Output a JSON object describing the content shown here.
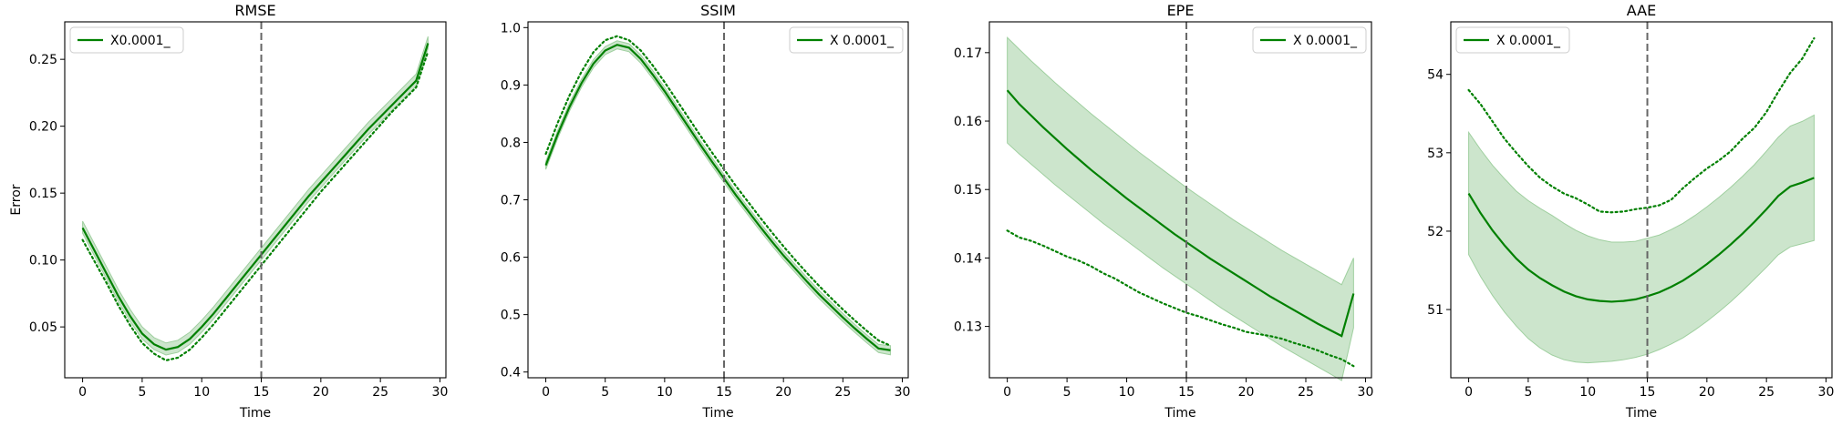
{
  "chart_data": [
    {
      "type": "line",
      "title": "RMSE",
      "xlabel": "Time",
      "ylabel": "Error",
      "xlim": [
        -1.5,
        30.5
      ],
      "ylim": [
        0.012,
        0.278
      ],
      "xticks": [
        0,
        5,
        10,
        15,
        20,
        25,
        30
      ],
      "yticks": [
        0.05,
        0.1,
        0.15,
        0.2,
        0.25
      ],
      "ytick_labels": [
        "0.05",
        "0.10",
        "0.15",
        "0.20",
        "0.25"
      ],
      "vline": 15,
      "legend": {
        "label": "X0.0001_",
        "position": "top-left"
      },
      "color": "#008000",
      "band_color": "#CCE5CC",
      "x": [
        0,
        1,
        2,
        3,
        4,
        5,
        6,
        7,
        8,
        9,
        10,
        11,
        12,
        13,
        14,
        15,
        16,
        17,
        18,
        19,
        20,
        21,
        22,
        23,
        24,
        25,
        26,
        27,
        28,
        29
      ],
      "series": [
        {
          "style": "solid",
          "values": [
            0.124,
            0.107,
            0.09,
            0.073,
            0.058,
            0.045,
            0.037,
            0.033,
            0.035,
            0.041,
            0.05,
            0.06,
            0.071,
            0.082,
            0.093,
            0.104,
            0.115,
            0.126,
            0.137,
            0.148,
            0.158,
            0.168,
            0.178,
            0.188,
            0.198,
            0.207,
            0.216,
            0.225,
            0.234,
            0.262
          ]
        },
        {
          "style": "dotted",
          "values": [
            0.115,
            0.099,
            0.083,
            0.066,
            0.051,
            0.038,
            0.03,
            0.025,
            0.027,
            0.033,
            0.042,
            0.052,
            0.063,
            0.074,
            0.085,
            0.096,
            0.107,
            0.118,
            0.129,
            0.14,
            0.151,
            0.161,
            0.171,
            0.181,
            0.191,
            0.201,
            0.211,
            0.22,
            0.229,
            0.256
          ]
        }
      ],
      "band": {
        "lower": [
          0.12,
          0.103,
          0.086,
          0.069,
          0.054,
          0.041,
          0.033,
          0.029,
          0.031,
          0.037,
          0.046,
          0.056,
          0.067,
          0.078,
          0.089,
          0.1,
          0.111,
          0.122,
          0.133,
          0.144,
          0.154,
          0.164,
          0.174,
          0.184,
          0.194,
          0.203,
          0.212,
          0.221,
          0.23,
          0.258
        ],
        "upper": [
          0.129,
          0.112,
          0.095,
          0.078,
          0.063,
          0.05,
          0.042,
          0.038,
          0.04,
          0.046,
          0.055,
          0.065,
          0.076,
          0.087,
          0.098,
          0.109,
          0.12,
          0.131,
          0.142,
          0.153,
          0.163,
          0.173,
          0.183,
          0.193,
          0.203,
          0.212,
          0.221,
          0.23,
          0.239,
          0.267
        ]
      }
    },
    {
      "type": "line",
      "title": "SSIM",
      "xlabel": "Time",
      "ylabel": "",
      "xlim": [
        -1.5,
        30.5
      ],
      "ylim": [
        0.39,
        1.01
      ],
      "xticks": [
        0,
        5,
        10,
        15,
        20,
        25,
        30
      ],
      "yticks": [
        0.4,
        0.5,
        0.6,
        0.7,
        0.8,
        0.9,
        1.0
      ],
      "ytick_labels": [
        "0.4",
        "0.5",
        "0.6",
        "0.7",
        "0.8",
        "0.9",
        "1.0"
      ],
      "vline": 15,
      "legend": {
        "label": "X 0.0001_",
        "position": "top-right"
      },
      "color": "#008000",
      "band_color": "#CCE5CC",
      "x": [
        0,
        1,
        2,
        3,
        4,
        5,
        6,
        7,
        8,
        9,
        10,
        11,
        12,
        13,
        14,
        15,
        16,
        17,
        18,
        19,
        20,
        21,
        22,
        23,
        24,
        25,
        26,
        27,
        28,
        29
      ],
      "series": [
        {
          "style": "solid",
          "values": [
            0.76,
            0.814,
            0.862,
            0.903,
            0.937,
            0.96,
            0.97,
            0.965,
            0.945,
            0.918,
            0.889,
            0.858,
            0.827,
            0.796,
            0.766,
            0.737,
            0.708,
            0.681,
            0.654,
            0.628,
            0.603,
            0.58,
            0.557,
            0.535,
            0.515,
            0.495,
            0.476,
            0.458,
            0.441,
            0.438
          ]
        },
        {
          "style": "dotted",
          "values": [
            0.78,
            0.834,
            0.882,
            0.923,
            0.957,
            0.978,
            0.985,
            0.978,
            0.96,
            0.934,
            0.905,
            0.874,
            0.843,
            0.812,
            0.782,
            0.753,
            0.724,
            0.697,
            0.67,
            0.644,
            0.619,
            0.595,
            0.572,
            0.55,
            0.529,
            0.509,
            0.49,
            0.472,
            0.455,
            0.446
          ]
        }
      ],
      "band": {
        "lower": [
          0.753,
          0.807,
          0.855,
          0.896,
          0.93,
          0.953,
          0.963,
          0.958,
          0.938,
          0.911,
          0.882,
          0.851,
          0.82,
          0.789,
          0.759,
          0.73,
          0.701,
          0.674,
          0.647,
          0.621,
          0.596,
          0.573,
          0.55,
          0.528,
          0.508,
          0.488,
          0.469,
          0.451,
          0.434,
          0.43
        ],
        "upper": [
          0.767,
          0.821,
          0.869,
          0.91,
          0.944,
          0.967,
          0.977,
          0.972,
          0.952,
          0.925,
          0.896,
          0.865,
          0.834,
          0.803,
          0.773,
          0.744,
          0.715,
          0.688,
          0.661,
          0.635,
          0.61,
          0.587,
          0.564,
          0.542,
          0.522,
          0.502,
          0.483,
          0.465,
          0.448,
          0.446
        ]
      }
    },
    {
      "type": "line",
      "title": "EPE",
      "xlabel": "Time",
      "ylabel": "",
      "xlim": [
        -1.5,
        30.5
      ],
      "ylim": [
        0.1225,
        0.1745
      ],
      "xticks": [
        0,
        5,
        10,
        15,
        20,
        25,
        30
      ],
      "yticks": [
        0.13,
        0.14,
        0.15,
        0.16,
        0.17
      ],
      "ytick_labels": [
        "0.13",
        "0.14",
        "0.15",
        "0.16",
        "0.17"
      ],
      "vline": 15,
      "legend": {
        "label": "X 0.0001_",
        "position": "top-right"
      },
      "color": "#008000",
      "band_color": "#CCE5CC",
      "x": [
        0,
        1,
        2,
        3,
        4,
        5,
        6,
        7,
        8,
        9,
        10,
        11,
        12,
        13,
        14,
        15,
        16,
        17,
        18,
        19,
        20,
        21,
        22,
        23,
        24,
        25,
        26,
        27,
        28,
        29
      ],
      "series": [
        {
          "style": "solid",
          "values": [
            0.1645,
            0.1625,
            0.1608,
            0.1591,
            0.1575,
            0.1559,
            0.1544,
            0.1529,
            0.1515,
            0.1501,
            0.1487,
            0.1474,
            0.1461,
            0.1448,
            0.1435,
            0.1423,
            0.1411,
            0.1399,
            0.1388,
            0.1377,
            0.1366,
            0.1355,
            0.1344,
            0.1334,
            0.1324,
            0.1314,
            0.1304,
            0.1295,
            0.1286,
            0.1348
          ]
        },
        {
          "style": "dotted",
          "values": [
            0.144,
            0.143,
            0.1425,
            0.1418,
            0.141,
            0.1402,
            0.1396,
            0.1388,
            0.1378,
            0.137,
            0.136,
            0.135,
            0.1342,
            0.1334,
            0.1327,
            0.132,
            0.1315,
            0.1309,
            0.1303,
            0.1298,
            0.1292,
            0.1289,
            0.1286,
            0.1282,
            0.1276,
            0.1271,
            0.1265,
            0.1258,
            0.1252,
            0.1242
          ]
        }
      ],
      "band": {
        "lower": [
          0.1568,
          0.1552,
          0.1537,
          0.1522,
          0.1507,
          0.1493,
          0.1479,
          0.1465,
          0.1451,
          0.1438,
          0.1425,
          0.1412,
          0.1399,
          0.1386,
          0.1374,
          0.1362,
          0.135,
          0.1338,
          0.1326,
          0.1315,
          0.1304,
          0.1293,
          0.1282,
          0.1271,
          0.1261,
          0.1251,
          0.1241,
          0.1231,
          0.1221,
          0.1298
        ],
        "upper": [
          0.1722,
          0.1705,
          0.1688,
          0.1672,
          0.1656,
          0.1641,
          0.1626,
          0.1611,
          0.1597,
          0.1583,
          0.1569,
          0.1555,
          0.1542,
          0.1529,
          0.1516,
          0.1503,
          0.1491,
          0.1479,
          0.1467,
          0.1455,
          0.1444,
          0.1433,
          0.1422,
          0.1411,
          0.1401,
          0.1391,
          0.1381,
          0.1371,
          0.1361,
          0.14
        ]
      }
    },
    {
      "type": "line",
      "title": "AAE",
      "xlabel": "Time",
      "ylabel": "",
      "xlim": [
        -1.5,
        30.5
      ],
      "ylim": [
        50.13,
        54.67
      ],
      "xticks": [
        0,
        5,
        10,
        15,
        20,
        25,
        30
      ],
      "yticks": [
        51,
        52,
        53,
        54
      ],
      "ytick_labels": [
        "51",
        "52",
        "53",
        "54"
      ],
      "vline": 15,
      "legend": {
        "label": "X 0.0001_",
        "position": "top-left"
      },
      "color": "#008000",
      "band_color": "#CCE5CC",
      "x": [
        0,
        1,
        2,
        3,
        4,
        5,
        6,
        7,
        8,
        9,
        10,
        11,
        12,
        13,
        14,
        15,
        16,
        17,
        18,
        19,
        20,
        21,
        22,
        23,
        24,
        25,
        26,
        27,
        28,
        29
      ],
      "series": [
        {
          "style": "solid",
          "values": [
            52.48,
            52.23,
            52.01,
            51.82,
            51.65,
            51.51,
            51.4,
            51.31,
            51.23,
            51.17,
            51.13,
            51.11,
            51.1,
            51.11,
            51.13,
            51.17,
            51.22,
            51.29,
            51.37,
            51.47,
            51.58,
            51.7,
            51.83,
            51.97,
            52.12,
            52.28,
            52.45,
            52.57,
            52.62,
            52.68
          ]
        },
        {
          "style": "dotted",
          "values": [
            53.8,
            53.62,
            53.4,
            53.18,
            53.0,
            52.83,
            52.68,
            52.57,
            52.48,
            52.42,
            52.34,
            52.25,
            52.24,
            52.25,
            52.28,
            52.3,
            52.33,
            52.4,
            52.55,
            52.68,
            52.8,
            52.9,
            53.02,
            53.18,
            53.32,
            53.52,
            53.78,
            54.02,
            54.2,
            54.46
          ]
        }
      ],
      "band": {
        "lower": [
          51.7,
          51.42,
          51.18,
          50.97,
          50.79,
          50.63,
          50.51,
          50.42,
          50.36,
          50.33,
          50.32,
          50.33,
          50.34,
          50.36,
          50.39,
          50.43,
          50.49,
          50.56,
          50.64,
          50.74,
          50.85,
          50.97,
          51.1,
          51.24,
          51.39,
          51.54,
          51.7,
          51.8,
          51.84,
          51.88
        ],
        "upper": [
          53.26,
          53.04,
          52.84,
          52.67,
          52.51,
          52.39,
          52.29,
          52.2,
          52.1,
          52.01,
          51.94,
          51.89,
          51.86,
          51.86,
          51.87,
          51.91,
          51.95,
          52.02,
          52.1,
          52.2,
          52.31,
          52.43,
          52.56,
          52.7,
          52.85,
          53.02,
          53.2,
          53.34,
          53.4,
          53.48
        ]
      }
    }
  ]
}
